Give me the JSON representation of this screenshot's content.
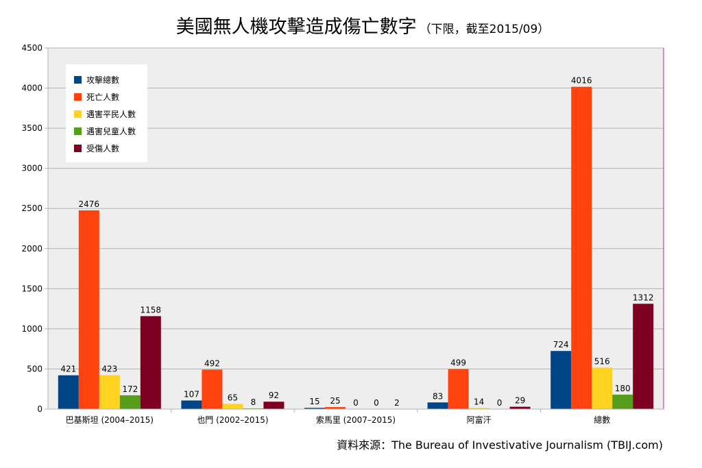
{
  "chart_data": {
    "type": "bar",
    "title": "美國無人機攻擊造成傷亡數字",
    "subtitle": "（下限，截至2015/09）",
    "source": "資料來源：The Bureau of Investivative Journalism (TBIJ.com)",
    "categories": [
      "巴基斯坦 (2004–2015)",
      "也門 (2002–2015)",
      "索馬里 (2007–2015)",
      "阿富汗",
      "總數"
    ],
    "ylim": [
      0,
      4500
    ],
    "yticks": [
      0,
      500,
      1000,
      1500,
      2000,
      2500,
      3000,
      3500,
      4000,
      4500
    ],
    "grid": true,
    "legend_position": "top-left",
    "series": [
      {
        "name": "攻擊總數",
        "color": "#004586",
        "values": [
          421,
          107,
          15,
          83,
          724
        ]
      },
      {
        "name": "死亡人數",
        "color": "#ff420e",
        "values": [
          2476,
          492,
          25,
          499,
          4016
        ]
      },
      {
        "name": "遇害平民人數",
        "color": "#ffd320",
        "values": [
          423,
          65,
          0,
          14,
          516
        ]
      },
      {
        "name": "遇害兒童人數",
        "color": "#579d1c",
        "values": [
          172,
          8,
          0,
          0,
          180
        ]
      },
      {
        "name": "受傷人數",
        "color": "#7e0021",
        "values": [
          1158,
          92,
          2,
          29,
          1312
        ]
      }
    ]
  }
}
